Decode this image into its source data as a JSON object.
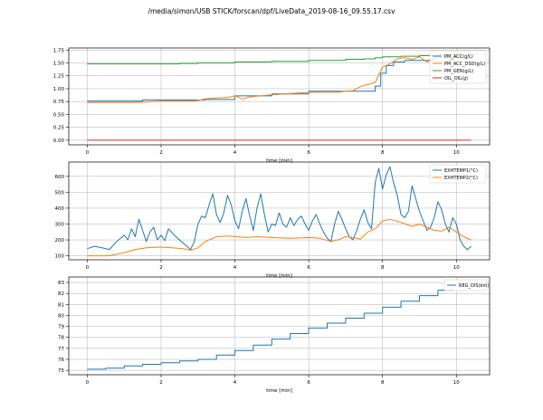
{
  "figure": {
    "title": "/media/simon/USB STICK/forscan/dpf/LiveData_2019-08-16_09.55.17.csv"
  },
  "colors": {
    "blue": "#1f77b4",
    "orange": "#ff7f0e",
    "green": "#2ca02c",
    "red": "#d62728",
    "grid": "#b0b0b0"
  },
  "chart_data": [
    {
      "type": "line",
      "xlabel": "time [min]",
      "ylabel": "",
      "xlim": [
        -0.5,
        10.9
      ],
      "ylim": [
        -0.09,
        1.79
      ],
      "xticks": [
        0,
        2,
        4,
        6,
        8,
        10
      ],
      "yticks": [
        0.0,
        0.25,
        0.5,
        0.75,
        1.0,
        1.25,
        1.5,
        1.75
      ],
      "ytick_labels": [
        "0.00",
        "0.25",
        "0.50",
        "0.75",
        "1.00",
        "1.25",
        "1.50",
        "1.75"
      ],
      "grid": true,
      "legend_position": "upper right",
      "series": [
        {
          "name": "PM_ACC(g/L)",
          "color": "blue",
          "step": true,
          "x": [
            0,
            0.4,
            1.0,
            1.5,
            2.0,
            2.8,
            3.2,
            3.6,
            4.0,
            4.4,
            5.0,
            5.5,
            6.0,
            6.5,
            7.0,
            7.4,
            7.8,
            7.95,
            8.1,
            8.3,
            8.6,
            9.0,
            9.4,
            9.8,
            10.1
          ],
          "y": [
            0.76,
            0.76,
            0.76,
            0.78,
            0.78,
            0.78,
            0.79,
            0.79,
            0.86,
            0.86,
            0.9,
            0.9,
            0.95,
            0.95,
            0.95,
            0.95,
            1.05,
            1.3,
            1.45,
            1.52,
            1.55,
            1.55,
            1.6,
            1.6,
            1.6
          ]
        },
        {
          "name": "PM_ACC_DSD(g/L)",
          "color": "orange",
          "step": false,
          "x": [
            0,
            0.6,
            1.2,
            1.6,
            2.0,
            2.5,
            2.8,
            3.0,
            3.2,
            3.5,
            3.8,
            4.0,
            4.2,
            4.4,
            4.7,
            5.0,
            5.4,
            5.8,
            6.2,
            6.6,
            6.8,
            7.0,
            7.2,
            7.4,
            7.6,
            7.8,
            8.0,
            8.2,
            8.4,
            8.6,
            8.8,
            9.0,
            9.2,
            9.4,
            9.6,
            9.8,
            10.0,
            10.2
          ],
          "y": [
            0.73,
            0.73,
            0.73,
            0.74,
            0.76,
            0.76,
            0.76,
            0.77,
            0.8,
            0.82,
            0.83,
            0.86,
            0.8,
            0.84,
            0.86,
            0.88,
            0.9,
            0.92,
            0.93,
            0.93,
            0.93,
            0.95,
            0.96,
            1.04,
            1.08,
            1.12,
            1.42,
            1.48,
            1.58,
            1.6,
            1.57,
            1.62,
            1.52,
            1.58,
            1.5,
            1.55,
            1.62,
            1.63
          ]
        },
        {
          "name": "PM_GEN(g/L)",
          "color": "green",
          "step": true,
          "x": [
            0,
            2.5,
            3.0,
            4.0,
            5.0,
            6.0,
            7.0,
            7.5,
            7.8,
            8.0,
            8.5,
            9.0,
            9.5,
            10.0,
            10.4
          ],
          "y": [
            1.48,
            1.49,
            1.5,
            1.52,
            1.53,
            1.55,
            1.57,
            1.58,
            1.6,
            1.62,
            1.63,
            1.64,
            1.66,
            1.67,
            1.67
          ]
        },
        {
          "name": "OIL_OIL(g)",
          "color": "red",
          "step": false,
          "x": [
            0,
            10.4
          ],
          "y": [
            0.0,
            0.0
          ]
        }
      ]
    },
    {
      "type": "line",
      "xlabel": "time [min]",
      "ylabel": "",
      "xlim": [
        -0.5,
        10.9
      ],
      "ylim": [
        75,
        690
      ],
      "xticks": [
        0,
        2,
        4,
        6,
        8,
        10
      ],
      "yticks": [
        100,
        200,
        300,
        400,
        500,
        600
      ],
      "ytick_labels": [
        "100",
        "200",
        "300",
        "400",
        "500",
        "600"
      ],
      "grid": true,
      "legend_position": "upper right",
      "series": [
        {
          "name": "EXHTEMP1(°C)",
          "color": "blue",
          "step": false,
          "x": [
            0,
            0.2,
            0.4,
            0.6,
            0.8,
            1.0,
            1.1,
            1.2,
            1.3,
            1.4,
            1.5,
            1.6,
            1.7,
            1.8,
            1.9,
            2.0,
            2.1,
            2.2,
            2.4,
            2.6,
            2.8,
            2.9,
            3.0,
            3.1,
            3.2,
            3.3,
            3.4,
            3.5,
            3.6,
            3.7,
            3.8,
            3.9,
            4.0,
            4.1,
            4.2,
            4.3,
            4.4,
            4.5,
            4.6,
            4.7,
            4.8,
            4.9,
            5.0,
            5.1,
            5.2,
            5.3,
            5.4,
            5.5,
            5.6,
            5.7,
            5.8,
            5.9,
            6.0,
            6.1,
            6.2,
            6.3,
            6.4,
            6.5,
            6.6,
            6.7,
            6.8,
            6.9,
            7.0,
            7.1,
            7.2,
            7.3,
            7.4,
            7.5,
            7.6,
            7.7,
            7.8,
            7.9,
            8.0,
            8.1,
            8.2,
            8.3,
            8.4,
            8.5,
            8.6,
            8.7,
            8.8,
            8.9,
            9.0,
            9.1,
            9.2,
            9.3,
            9.4,
            9.5,
            9.6,
            9.7,
            9.8,
            9.9,
            10.0,
            10.1,
            10.2,
            10.3,
            10.4
          ],
          "y": [
            145,
            160,
            150,
            140,
            190,
            230,
            200,
            270,
            220,
            330,
            260,
            190,
            250,
            280,
            200,
            230,
            195,
            270,
            220,
            180,
            140,
            190,
            300,
            350,
            340,
            420,
            490,
            360,
            310,
            370,
            480,
            420,
            320,
            270,
            380,
            460,
            350,
            260,
            400,
            490,
            360,
            250,
            300,
            290,
            370,
            300,
            280,
            340,
            290,
            330,
            350,
            300,
            260,
            320,
            360,
            300,
            250,
            210,
            190,
            300,
            380,
            330,
            270,
            220,
            200,
            260,
            330,
            390,
            310,
            270,
            560,
            650,
            520,
            610,
            660,
            560,
            480,
            360,
            340,
            380,
            540,
            460,
            380,
            320,
            260,
            280,
            340,
            440,
            390,
            300,
            250,
            340,
            300,
            200,
            160,
            140,
            160
          ]
        },
        {
          "name": "EXHTEMP2(°C)",
          "color": "orange",
          "step": false,
          "x": [
            0,
            0.5,
            0.7,
            1.0,
            1.3,
            1.6,
            2.0,
            2.3,
            2.6,
            2.8,
            3.0,
            3.2,
            3.5,
            3.8,
            4.0,
            4.3,
            4.6,
            5.0,
            5.5,
            6.0,
            6.3,
            6.6,
            6.8,
            7.0,
            7.2,
            7.4,
            7.6,
            7.8,
            8.0,
            8.2,
            8.5,
            8.8,
            9.0,
            9.2,
            9.4,
            9.6,
            9.8,
            10.0,
            10.2,
            10.4
          ],
          "y": [
            100,
            100,
            105,
            120,
            140,
            150,
            155,
            150,
            145,
            135,
            150,
            190,
            220,
            225,
            220,
            215,
            220,
            215,
            210,
            215,
            210,
            190,
            200,
            220,
            215,
            205,
            250,
            270,
            320,
            330,
            310,
            285,
            300,
            280,
            260,
            255,
            280,
            250,
            220,
            200
          ]
        }
      ]
    },
    {
      "type": "line",
      "xlabel": "time [min]",
      "ylabel": "",
      "xlim": [
        -0.5,
        10.9
      ],
      "ylim": [
        74.6,
        83.5
      ],
      "xticks": [
        0,
        2,
        4,
        6,
        8,
        10
      ],
      "yticks": [
        75,
        76,
        77,
        78,
        79,
        80,
        81,
        82,
        83
      ],
      "ytick_labels": [
        "75",
        "76",
        "77",
        "78",
        "79",
        "80",
        "81",
        "82",
        "83"
      ],
      "grid": true,
      "legend_position": "upper right",
      "series": [
        {
          "name": "REG_DIS(km)",
          "color": "blue",
          "step": true,
          "x": [
            0,
            0.5,
            1.0,
            1.5,
            2.0,
            2.5,
            3.0,
            3.5,
            4.0,
            4.5,
            5.0,
            5.5,
            6.0,
            6.5,
            7.0,
            7.5,
            8.0,
            8.5,
            9.0,
            9.5,
            9.9
          ],
          "y": [
            75.1,
            75.2,
            75.4,
            75.55,
            75.7,
            75.85,
            76.0,
            76.4,
            76.8,
            77.3,
            77.85,
            78.35,
            78.85,
            79.3,
            79.75,
            80.2,
            80.75,
            81.3,
            81.8,
            82.3,
            82.75
          ]
        }
      ]
    }
  ]
}
